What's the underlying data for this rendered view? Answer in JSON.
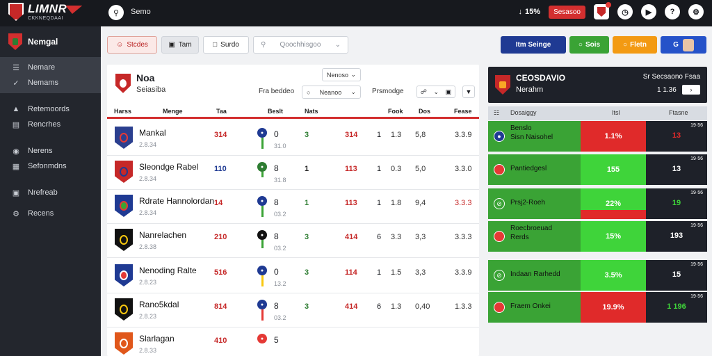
{
  "brand": {
    "title": "LIMNR",
    "subtitle": "CKKNEQDAAI"
  },
  "top": {
    "search_label": "Semo",
    "stat": "15%",
    "chip": "Sesasoo"
  },
  "sidebar": {
    "title": "Nemgal",
    "items": [
      {
        "label": "Nemare",
        "icon": "menu-icon"
      },
      {
        "label": "Nemams",
        "icon": "check-icon"
      },
      {
        "label": "Retemoords",
        "icon": "pin-icon"
      },
      {
        "label": "Rencrhes",
        "icon": "list-icon"
      },
      {
        "label": "Nerens",
        "icon": "location-icon"
      },
      {
        "label": "Sefonmdns",
        "icon": "table-icon"
      },
      {
        "label": "Nrefreab",
        "icon": "chart-icon"
      },
      {
        "label": "Recens",
        "icon": "gear-icon"
      }
    ]
  },
  "filters": {
    "studes": "Stcdes",
    "tam": "Tam",
    "surdo": "Surdo",
    "select_placeholder": "Qoochhisgoo"
  },
  "actions": {
    "a1": "Itm Seinge",
    "a2": "Sois",
    "a3": "Fletn",
    "a4": "G"
  },
  "club": {
    "name": "Noa",
    "sub": "Seiasiba",
    "sel1": "Nenoso",
    "label1": "Fra beddeo",
    "sel2": "Neanoo",
    "label2": "Prsmodge"
  },
  "table": {
    "headers": [
      "Harss",
      "Menge",
      "Taa",
      "Beslt",
      "Nats",
      "Fook",
      "Dos",
      "Fease"
    ],
    "rows": [
      {
        "name": "Mankal",
        "sub": "2.8.34",
        "pts": "314",
        "c1": "0",
        "c1sub": "31.0",
        "c2": "3",
        "c3": "314",
        "c4": "1",
        "c5": "1.3",
        "c6": "5,8",
        "c7": "3.3.9"
      },
      {
        "name": "Sleondge Rabel",
        "sub": "2.8.34",
        "pts": "110",
        "c1": "8",
        "c1sub": "31.8",
        "c2": "1",
        "c3": "113",
        "c4": "1",
        "c5": "0.3",
        "c6": "5,0",
        "c7": "3.3.0"
      },
      {
        "name": "Rdrate Hannolordan",
        "sub": "2.8.34",
        "pts": "14",
        "c1": "8",
        "c1sub": "03.2",
        "c2": "1",
        "c3": "113",
        "c4": "1",
        "c5": "1.8",
        "c6": "9,4",
        "c7": "3.3.3"
      },
      {
        "name": "Nanrelachen",
        "sub": "2.8.38",
        "pts": "210",
        "c1": "8",
        "c1sub": "03.2",
        "c2": "3",
        "c3": "414",
        "c4": "6",
        "c5": "3.3",
        "c6": "3,3",
        "c7": "3.3.3"
      },
      {
        "name": "Nenoding Ralte",
        "sub": "2.8.23",
        "pts": "516",
        "c1": "0",
        "c1sub": "13.2",
        "c2": "3",
        "c3": "114",
        "c4": "1",
        "c5": "1.5",
        "c6": "3,3",
        "c7": "3.3.9"
      },
      {
        "name": "Rano5kdal",
        "sub": "2.8.23",
        "pts": "814",
        "c1": "8",
        "c1sub": "03.2",
        "c2": "3",
        "c3": "414",
        "c4": "6",
        "c5": "1.3",
        "c6": "0,40",
        "c7": "1.3.3"
      },
      {
        "name": "Slarlagan",
        "sub": "2.8.33",
        "pts": "410",
        "c1": "5",
        "c1sub": "",
        "c2": "",
        "c3": "",
        "c4": "",
        "c5": "",
        "c6": "",
        "c7": ""
      }
    ]
  },
  "odds": {
    "title": "CEOSDAVIO",
    "sub": "Nerahm",
    "right_label": "Sr Secsaono Fsaa",
    "value": "1 1.36",
    "headers": [
      "Dosaiggy",
      "Itsl",
      "Ftasne"
    ],
    "rows": [
      {
        "name": "Benslo\nSisn Naisohel",
        "pct": "1.1%",
        "main": "13",
        "tag": "19·56",
        "mid_color": "#e02a2a",
        "icon": "flag-icon"
      },
      {
        "name": "Pantiedgesl",
        "pct": "155",
        "main": "13",
        "tag": "19·56",
        "mid_color": "#3fd43a",
        "icon": "flag-icon"
      },
      {
        "name": "Prsj2-Roeh",
        "pct": "22%",
        "main": "19",
        "tag": "19·56",
        "mid_color": "#3fd43a",
        "icon": "ban-icon"
      },
      {
        "name": "Roecbroeuad\nRerds",
        "pct": "15%",
        "main": "193",
        "tag": "19·56",
        "mid_color": "#3fd43a",
        "icon": "flag-icon"
      },
      {
        "name": "Indaan Rarhedd",
        "pct": "3.5%",
        "main": "15",
        "tag": "19·56",
        "mid_color": "#3fd43a",
        "icon": "ban-icon"
      },
      {
        "name": "Fraem Onkei",
        "pct": "19.9%",
        "main": "1 196",
        "tag": "19·56",
        "mid_color": "#e02a2a",
        "icon": "flag-icon"
      }
    ]
  }
}
